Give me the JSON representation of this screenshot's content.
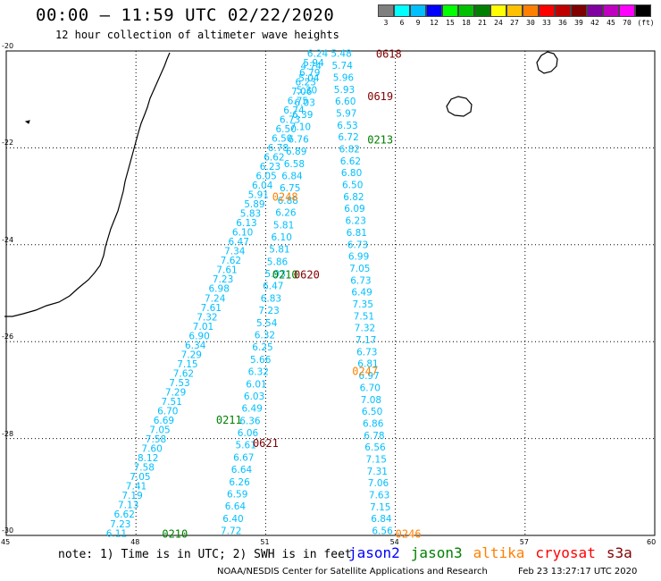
{
  "title": "00:00 – 11:59 UTC 02/22/2020",
  "subtitle": "12 hour collection of altimeter wave heights",
  "scale": {
    "colors": [
      "#7f7f7f",
      "#00ffff",
      "#00bfff",
      "#0000ff",
      "#00ff00",
      "#00c000",
      "#008000",
      "#ffff00",
      "#ffc000",
      "#ff8000",
      "#ff0000",
      "#c00000",
      "#800000",
      "#8000a0",
      "#c000c0",
      "#ff00ff",
      "#000000"
    ],
    "labels": [
      "3",
      "6",
      "9",
      "12",
      "15",
      "18",
      "21",
      "24",
      "27",
      "30",
      "33",
      "36",
      "39",
      "42",
      "45",
      "70",
      "(ft)"
    ]
  },
  "axes": {
    "x_ticks": [
      "45",
      "48",
      "51",
      "54",
      "57",
      "60"
    ],
    "y_ticks": [
      "-20",
      "-22",
      "-24",
      "-26",
      "-28",
      "-30"
    ]
  },
  "note": "note: 1) Time is in UTC; 2) SWH is in feet",
  "satellites": [
    {
      "name": "jason2",
      "color": "#0000ff"
    },
    {
      "name": "jason3",
      "color": "#008000"
    },
    {
      "name": "altika",
      "color": "#ff8000"
    },
    {
      "name": "cryosat",
      "color": "#ff0000"
    },
    {
      "name": "s3a",
      "color": "#800000"
    }
  ],
  "credit": "NOAA/NESDIS Center for Satellite Applications and Research",
  "timestamp": "Feb 23 13:27:17 UTC 2020",
  "pass_labels": [
    {
      "text": "0618",
      "color": "#800000",
      "lon": 53.85,
      "lat": -20.05
    },
    {
      "text": "0619",
      "color": "#800000",
      "lon": 53.65,
      "lat": -20.92
    },
    {
      "text": "0213",
      "color": "#008000",
      "lon": 53.65,
      "lat": -21.82
    },
    {
      "text": "0248",
      "color": "#ff8000",
      "lon": 51.45,
      "lat": -23.0
    },
    {
      "text": "0210",
      "color": "#008000",
      "lon": 51.45,
      "lat": -24.6
    },
    {
      "text": "0620",
      "color": "#800000",
      "lon": 51.95,
      "lat": -24.6
    },
    {
      "text": "0247",
      "color": "#ff8000",
      "lon": 53.3,
      "lat": -26.6
    },
    {
      "text": "0211",
      "color": "#008000",
      "lon": 50.15,
      "lat": -27.6
    },
    {
      "text": "0621",
      "color": "#800000",
      "lon": 51.0,
      "lat": -28.08
    },
    {
      "text": "0210",
      "color": "#008000",
      "lon": 48.9,
      "lat": -29.95
    },
    {
      "text": "0246",
      "color": "#ff8000",
      "lon": 54.3,
      "lat": -29.95
    }
  ],
  "tracks": [
    {
      "name": "track-a",
      "color": "#00bfff",
      "start": [
        52.2,
        -20.05
      ],
      "end": [
        47.55,
        -29.95
      ],
      "values": [
        "6.24",
        "5.94",
        "6.79",
        "6.23",
        "7.06",
        "6.75",
        "6.74",
        "6.73",
        "6.50",
        "6.50",
        "6.78",
        "6.62",
        "6.23",
        "6.05",
        "6.04",
        "5.91",
        "5.89",
        "5.83",
        "6.13",
        "6.10",
        "6.47",
        "7.34",
        "7.62",
        "7.61",
        "7.23",
        "6.98",
        "7.24",
        "7.61",
        "7.32",
        "7.01",
        "6.90",
        "6.34",
        "7.29",
        "7.15",
        "7.62",
        "7.53",
        "7.29",
        "7.51",
        "6.70",
        "6.69",
        "7.05",
        "7.58",
        "7.60",
        "8.12",
        "7.58",
        "7.05",
        "7.41",
        "7.19",
        "7.13",
        "6.62",
        "7.23",
        "6.11"
      ]
    },
    {
      "name": "track-b",
      "color": "#00bfff",
      "start": [
        52.05,
        -20.3
      ],
      "end": [
        50.2,
        -29.9
      ],
      "values": [
        "4.74",
        "5.04",
        "5.30",
        "6.03",
        "6.39",
        "7.10",
        "6.76",
        "6.89",
        "6.58",
        "6.84",
        "6.75",
        "6.88",
        "6.26",
        "5.81",
        "6.10",
        "5.81",
        "5.86",
        "5.93",
        "6.47",
        "6.83",
        "7.23",
        "5.54",
        "6.32",
        "6.25",
        "5.66",
        "6.32",
        "6.01",
        "6.03",
        "6.49",
        "6.36",
        "6.06",
        "5.61",
        "6.67",
        "6.64",
        "6.26",
        "6.59",
        "6.64",
        "6.40",
        "7.72"
      ]
    },
    {
      "name": "track-c",
      "color": "#00bfff",
      "start": [
        52.75,
        -20.05
      ],
      "end": [
        53.7,
        -29.9
      ],
      "values": [
        "5.48",
        "5.74",
        "5.96",
        "5.93",
        "6.60",
        "5.97",
        "6.53",
        "6.72",
        "6.82",
        "6.62",
        "6.80",
        "6.50",
        "6.82",
        "6.09",
        "6.23",
        "6.81",
        "6.73",
        "6.99",
        "7.05",
        "6.73",
        "6.49",
        "7.35",
        "7.51",
        "7.32",
        "7.17",
        "6.73",
        "6.81",
        "6.97",
        "6.70",
        "7.08",
        "6.50",
        "6.86",
        "6.78",
        "6.56",
        "7.15",
        "7.31",
        "7.06",
        "7.63",
        "7.15",
        "6.84",
        "6.56"
      ]
    }
  ]
}
